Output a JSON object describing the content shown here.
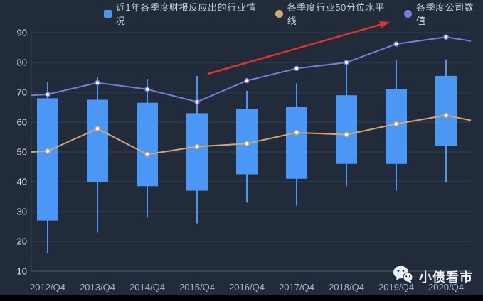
{
  "legend": {
    "items": [
      {
        "label": "近1年各季度财报反应出的行业情况",
        "marker": "square",
        "color": "#4a97f5"
      },
      {
        "label": "各季度行业50分位水平线",
        "marker": "circle",
        "color": "#d4a870"
      },
      {
        "label": "各季度公司数值",
        "marker": "circle",
        "color": "#777dde"
      }
    ]
  },
  "watermark": {
    "icon": "wechat-icon",
    "text": "小债看市"
  },
  "annotation": {
    "type": "arrow",
    "color": "#e5302c",
    "target": "各季度公司数值"
  },
  "chart_data": {
    "type": "candlestick",
    "title": "",
    "xlabel": "",
    "ylabel": "",
    "ylim": [
      10,
      90
    ],
    "y_ticks": [
      10,
      20,
      30,
      40,
      50,
      60,
      70,
      80,
      90
    ],
    "grid": true,
    "legend_position": "top",
    "categories": [
      "2012/Q4",
      "2013/Q4",
      "2014/Q4",
      "2015/Q4",
      "2016/Q4",
      "2017/Q4",
      "2018/Q4",
      "2019/Q4",
      "2020/Q4"
    ],
    "box_format": [
      "whisker_low",
      "box_bottom",
      "box_top",
      "whisker_high"
    ],
    "boxes": [
      [
        16,
        27,
        68,
        73.5
      ],
      [
        23,
        40,
        67.5,
        75
      ],
      [
        28,
        38.5,
        66.5,
        74.5
      ],
      [
        26,
        37,
        63,
        75.5
      ],
      [
        33,
        42.5,
        64.5,
        70.5
      ],
      [
        32,
        41,
        65,
        73
      ],
      [
        38.5,
        46,
        69,
        80
      ],
      [
        37,
        46,
        71,
        81
      ],
      [
        40,
        52,
        75.5,
        81
      ]
    ],
    "series": [
      {
        "name": "近1年各季度财报反应出的行业情况",
        "type": "box",
        "color": "#4a97f5"
      },
      {
        "name": "各季度行业50分位水平线",
        "type": "line",
        "color": "#d4a870",
        "values": [
          50.3,
          57.8,
          49.2,
          51.8,
          52.8,
          56.5,
          55.8,
          59.4,
          62.3
        ],
        "left_edge_value": 50,
        "right_edge_value": 60.6
      },
      {
        "name": "各季度公司数值",
        "type": "line",
        "color": "#777dde",
        "values": [
          69.3,
          73.2,
          71,
          66.8,
          73.9,
          78,
          80,
          86.2,
          88.5
        ],
        "left_edge_value": 69,
        "right_edge_value": 87.2
      }
    ]
  }
}
